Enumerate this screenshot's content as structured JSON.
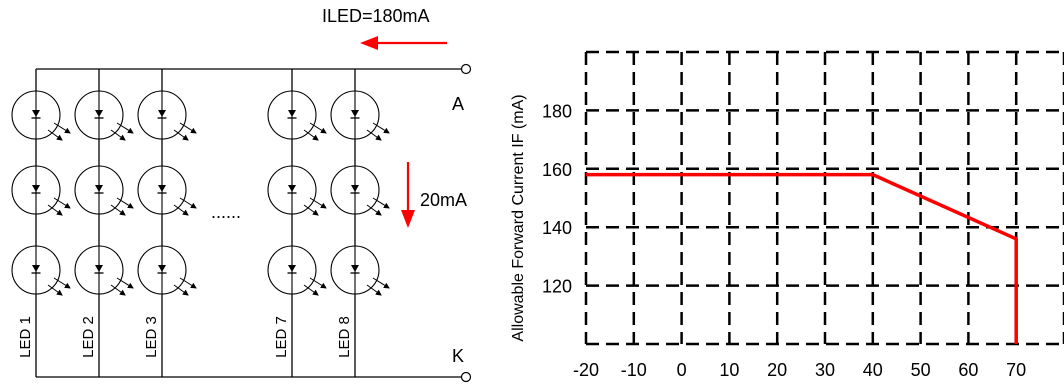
{
  "circuit": {
    "current_label": "ILED=180mA",
    "branch_current_label": "20mA",
    "terminal_a": "A",
    "terminal_k": "K",
    "ellipsis": "......",
    "led_labels": [
      "LED 1",
      "LED 2",
      "LED 3",
      "LED 7",
      "LED 8"
    ],
    "rows": 3,
    "arrow_color": "#ff0000"
  },
  "chart_data": {
    "type": "line",
    "ylabel": "Allowable Forward Current IF (mA)",
    "xlabel": "",
    "x_ticks": [
      -20,
      -10,
      0,
      10,
      20,
      30,
      40,
      50,
      60,
      70
    ],
    "y_ticks": [
      120,
      140,
      160,
      180
    ],
    "xlim": [
      -20,
      80
    ],
    "ylim": [
      100,
      200
    ],
    "grid": true,
    "grid_style": "dashed",
    "series": [
      {
        "color": "#ff0000",
        "x": [
          -20,
          40,
          70,
          70
        ],
        "y": [
          158,
          158,
          136,
          100
        ]
      }
    ]
  }
}
